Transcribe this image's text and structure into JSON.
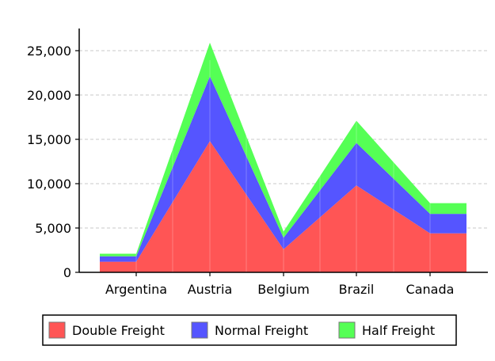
{
  "chart_data": {
    "type": "area",
    "stacked": true,
    "categories": [
      "Argentina",
      "Austria",
      "Belgium",
      "Brazil",
      "Canada"
    ],
    "series": [
      {
        "name": "Double Freight",
        "color": "#ff5555",
        "values": [
          1200,
          14800,
          2600,
          9800,
          4400
        ]
      },
      {
        "name": "Normal Freight",
        "color": "#5555ff",
        "values": [
          600,
          7300,
          1300,
          4800,
          2200
        ]
      },
      {
        "name": "Half Freight",
        "color": "#55ff55",
        "values": [
          300,
          3800,
          700,
          2500,
          1200
        ]
      }
    ],
    "y_ticks": [
      "0",
      "5,000",
      "10,000",
      "15,000",
      "20,000",
      "25,000"
    ],
    "y_tick_values": [
      0,
      5000,
      10000,
      15000,
      20000,
      25000
    ],
    "ylim": [
      0,
      27500
    ],
    "grid": "horizontal-dashed",
    "legend_position": "bottom"
  }
}
